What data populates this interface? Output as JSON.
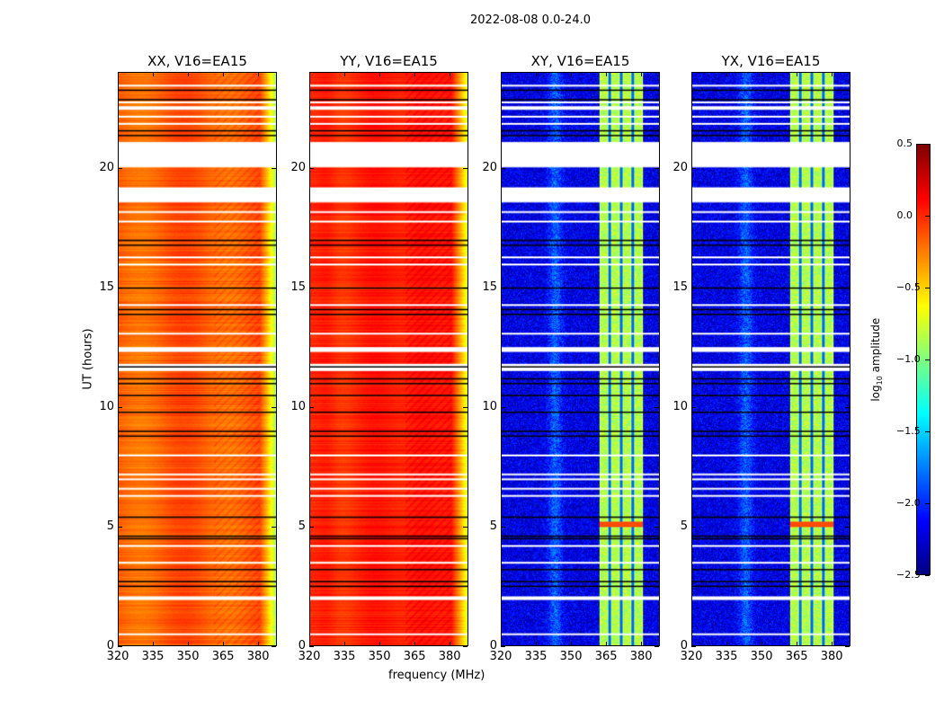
{
  "chart_data": {
    "type": "heatmap",
    "title": "2022-08-08 0.0-24.0",
    "xlabel": "frequency (MHz)",
    "ylabel": "UT (hours)",
    "xlim": [
      320,
      388
    ],
    "ylim": [
      0,
      24
    ],
    "xticks": [
      "320",
      "335",
      "350",
      "365",
      "380"
    ],
    "xtick_values": [
      320,
      335,
      350,
      365,
      380
    ],
    "yticks": [
      "0",
      "5",
      "10",
      "15",
      "20"
    ],
    "ytick_values": [
      0,
      5,
      10,
      15,
      20
    ],
    "panels": [
      {
        "title": "XX, V16=EA15",
        "base": -0.15,
        "kind": "auto"
      },
      {
        "title": "YY, V16=EA15",
        "base": 0.0,
        "kind": "auto2"
      },
      {
        "title": "XY, V16=EA15",
        "base": -2.2,
        "kind": "cross"
      },
      {
        "title": "YX, V16=EA15",
        "base": -2.2,
        "kind": "cross"
      }
    ],
    "flagged_hours": [
      [
        20.04,
        21.1
      ],
      [
        18.57,
        19.2
      ],
      [
        12.3,
        12.5
      ],
      [
        11.5,
        11.8
      ],
      [
        1.9,
        2.05
      ],
      [
        22.45,
        22.6
      ]
    ],
    "white_lines_hours": [
      23.5,
      22.8,
      22.2,
      21.9,
      18.2,
      17.8,
      16.3,
      16.0,
      14.3,
      13.1,
      8.0,
      7.2,
      7.0,
      6.6,
      6.3,
      4.2,
      3.5,
      0.5
    ],
    "black_lines_hours": [
      23.3,
      22.9,
      21.6,
      21.4,
      17.0,
      16.8,
      15.0,
      14.1,
      13.9,
      11.7,
      11.2,
      11.0,
      10.5,
      9.8,
      9.0,
      8.8,
      5.4,
      4.6,
      4.5,
      3.2,
      2.7,
      2.5
    ],
    "colorbar": {
      "label": "log10 amplitude",
      "label_main": "log",
      "label_sub": "10",
      "label_rest": " amplitude",
      "range": [
        -2.5,
        0.5
      ],
      "ticks": [
        "0.5",
        "0.0",
        "−0.5",
        "−1.0",
        "−1.5",
        "−2.0",
        "−2.5"
      ],
      "tick_values": [
        0.5,
        0.0,
        -0.5,
        -1.0,
        -1.5,
        -2.0,
        -2.5
      ]
    }
  }
}
